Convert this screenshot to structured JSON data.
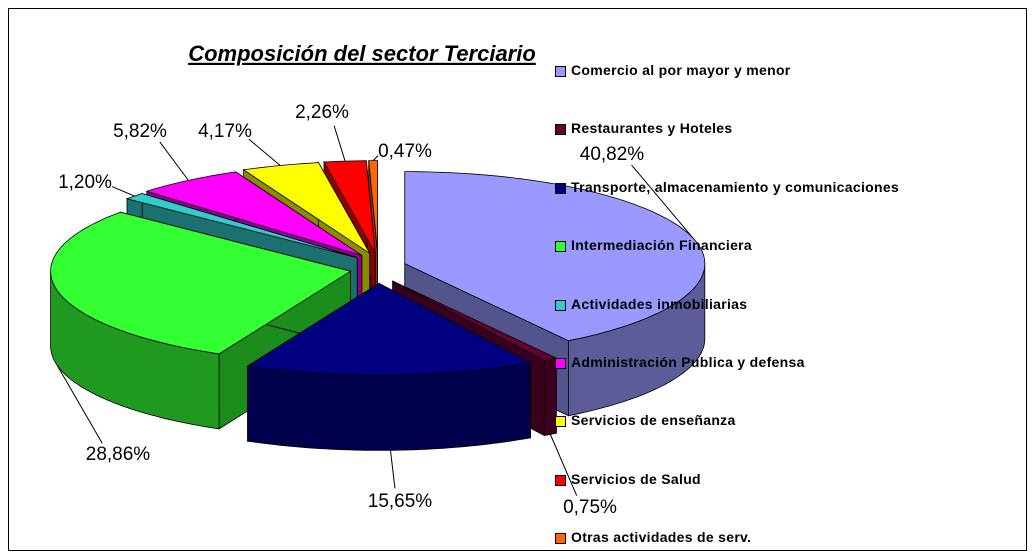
{
  "chart_data": {
    "type": "pie3d",
    "title": "Composición del sector Terciario",
    "categories": [
      "Comercio al por mayor y menor",
      "Restaurantes y Hoteles",
      "Transporte, almacenamiento y comunicaciones",
      "Intermediación Financiera",
      "Actividades inmobiliarias",
      "Administración Publica y defensa",
      "Servicios de enseñanza",
      "Servicios de Salud",
      "Otras actividades de serv."
    ],
    "values": [
      40.82,
      0.75,
      15.65,
      28.86,
      1.2,
      5.82,
      4.17,
      2.26,
      0.47
    ],
    "value_labels": [
      "40,82%",
      "0,75%",
      "15,65%",
      "28,86%",
      "1,20%",
      "5,82%",
      "4,17%",
      "2,26%",
      "0,47%"
    ],
    "colors": [
      "#9999ff",
      "#660033",
      "#000080",
      "#33ff33",
      "#33cccc",
      "#ff00ff",
      "#ffff00",
      "#ff0000",
      "#ff6600"
    ]
  }
}
